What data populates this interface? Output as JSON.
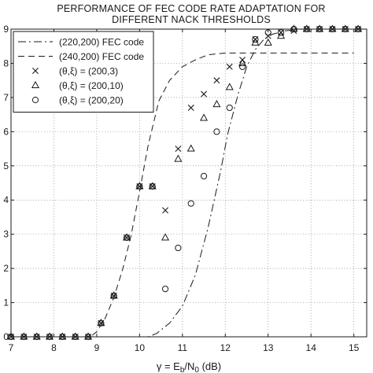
{
  "chart_data": {
    "type": "line",
    "title_lines": [
      "PERFORMANCE OF FEC CODE RATE ADAPTATION FOR",
      "DIFFERENT NACK THRESHOLDS"
    ],
    "xlabel": {
      "main": "γ = E",
      "sub1": "b",
      "mid": "/N",
      "sub2": "0",
      "tail": " (dB)"
    },
    "ylabel": "",
    "xlim": [
      7,
      15.3
    ],
    "ylim": [
      0,
      9
    ],
    "xticks": [
      7,
      8,
      9,
      10,
      11,
      12,
      13,
      14,
      15
    ],
    "yticks": [
      0,
      1,
      2,
      3,
      4,
      5,
      6,
      7,
      8,
      9
    ],
    "grid": "dotted",
    "legend_position": "top-left",
    "series": [
      {
        "name": "(220,200) FEC code",
        "style": "dash-dot",
        "x": [
          7,
          10.2,
          10.4,
          10.7,
          11.0,
          11.3,
          11.6,
          11.9,
          12.05,
          12.3,
          12.5,
          12.7,
          12.9,
          13.1,
          13.4,
          13.8,
          15.3
        ],
        "y": [
          0,
          0,
          0.1,
          0.4,
          0.9,
          1.8,
          3.2,
          4.9,
          5.9,
          7.1,
          7.9,
          8.4,
          8.7,
          8.85,
          8.95,
          9.0,
          9.0
        ]
      },
      {
        "name": "(240,200) FEC code",
        "style": "dashed",
        "x": [
          7,
          8.85,
          9.0,
          9.2,
          9.4,
          9.6,
          9.8,
          10.0,
          10.2,
          10.45,
          10.7,
          11.0,
          11.3,
          11.6,
          12.0,
          15.0
        ],
        "y": [
          0,
          0,
          0.15,
          0.55,
          1.15,
          1.95,
          2.95,
          4.25,
          5.6,
          6.9,
          7.5,
          7.9,
          8.1,
          8.25,
          8.3,
          8.3
        ]
      },
      {
        "name": "(θ,ξ) = (200,3)",
        "marker": "x",
        "x": [
          7.0,
          7.3,
          7.6,
          7.9,
          8.2,
          8.5,
          8.8,
          9.1,
          9.4,
          9.7,
          10.0,
          10.3,
          10.6,
          10.9,
          11.2,
          11.5,
          11.8,
          12.1,
          12.4,
          12.7,
          13.0,
          13.3,
          13.6,
          13.9,
          14.2,
          14.5,
          14.8,
          15.1
        ],
        "y": [
          0,
          0,
          0,
          0,
          0,
          0,
          0,
          0.4,
          1.2,
          2.9,
          4.4,
          4.4,
          3.7,
          5.5,
          6.7,
          7.1,
          7.5,
          7.9,
          8.1,
          8.7,
          8.8,
          8.9,
          8.95,
          9.0,
          9.0,
          9.0,
          9.0,
          9.0
        ]
      },
      {
        "name": "(θ,ξ) = (200,10)",
        "marker": "triangle",
        "x": [
          7.0,
          7.3,
          7.6,
          7.9,
          8.2,
          8.5,
          8.8,
          9.1,
          9.4,
          9.7,
          10.0,
          10.3,
          10.6,
          10.9,
          11.2,
          11.5,
          11.8,
          12.1,
          12.4,
          12.7,
          13.0,
          13.3,
          13.6,
          13.9,
          14.2,
          14.5,
          14.8,
          15.1
        ],
        "y": [
          0,
          0,
          0,
          0,
          0,
          0,
          0,
          0.4,
          1.2,
          2.9,
          4.4,
          4.4,
          2.9,
          5.2,
          5.5,
          6.4,
          6.8,
          7.3,
          8.0,
          8.6,
          8.6,
          8.8,
          9.0,
          9.0,
          9.0,
          9.0,
          9.0,
          9.0
        ]
      },
      {
        "name": "(θ,ξ) = (200,20)",
        "marker": "circle",
        "x": [
          7.0,
          7.3,
          7.6,
          7.9,
          8.2,
          8.5,
          8.8,
          9.1,
          9.4,
          9.7,
          10.0,
          10.3,
          10.6,
          10.9,
          11.2,
          11.5,
          11.8,
          12.1,
          12.4,
          12.7,
          13.0,
          13.3,
          13.6,
          13.9,
          14.2,
          14.5,
          14.8,
          15.1
        ],
        "y": [
          0,
          0,
          0,
          0,
          0,
          0,
          0,
          0.4,
          1.2,
          2.9,
          4.4,
          4.4,
          1.4,
          2.6,
          3.9,
          4.7,
          6.0,
          6.7,
          7.9,
          8.7,
          8.9,
          8.9,
          9.0,
          9.0,
          9.0,
          9.0,
          9.0,
          9.0
        ]
      }
    ]
  }
}
